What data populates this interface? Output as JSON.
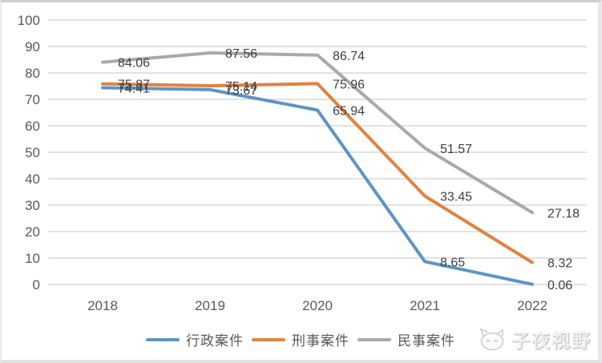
{
  "chart_data": {
    "type": "line",
    "title": "",
    "xlabel": "",
    "ylabel": "",
    "categories": [
      "2018",
      "2019",
      "2020",
      "2021",
      "2022"
    ],
    "series": [
      {
        "name": "行政案件",
        "color": "#5e94c5",
        "values": [
          74.41,
          73.67,
          65.94,
          8.65,
          0.06
        ]
      },
      {
        "name": "刑事案件",
        "color": "#e0833f",
        "values": [
          75.87,
          75.14,
          75.96,
          33.45,
          8.32
        ]
      },
      {
        "name": "民事案件",
        "color": "#a9a9a9",
        "values": [
          84.06,
          87.56,
          86.74,
          51.57,
          27.18
        ]
      }
    ],
    "ylim": [
      0,
      100
    ],
    "yticks": [
      0,
      10,
      20,
      30,
      40,
      50,
      60,
      70,
      80,
      90,
      100
    ],
    "grid": true,
    "data_labels": true,
    "legend_position": "bottom"
  },
  "colors": {
    "gridline": "#d9d9d9",
    "tick_label": "#595959",
    "data_label": "#3f3f3f",
    "background": "#ffffff"
  },
  "watermark": {
    "text": "子夜视野",
    "icon": "cat-face-icon"
  }
}
